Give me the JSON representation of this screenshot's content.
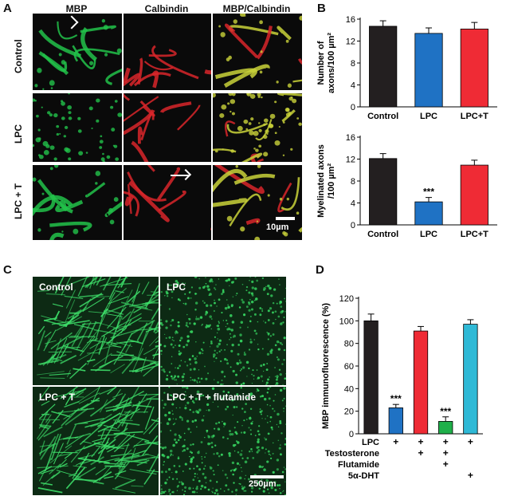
{
  "panels": {
    "a": {
      "letter": "A",
      "columns": [
        "MBP",
        "Calbindin",
        "MBP/Calbindin"
      ],
      "rows": [
        "Control",
        "LPC",
        "LPC + T"
      ],
      "scale_bar": "10µm",
      "colors": {
        "mbp": "#22c24a",
        "calbindin": "#d8262a",
        "merge": "#c9d23a",
        "bg": "#0a0a0a"
      }
    },
    "b": {
      "letter": "B"
    },
    "c": {
      "letter": "C",
      "labels": [
        "Control",
        "LPC",
        "LPC + T",
        "LPC + T + flutamide"
      ],
      "scale_bar": "250µm"
    },
    "d": {
      "letter": "D",
      "row_labels": [
        "LPC",
        "Testosterone",
        "Flutamide",
        "5α-DHT"
      ],
      "plus": "+"
    }
  },
  "chart_data": [
    {
      "id": "b-top",
      "type": "bar",
      "categories": [
        "Control",
        "LPC",
        "LPC+T"
      ],
      "values": [
        14.7,
        13.4,
        14.2
      ],
      "errors": [
        1.0,
        1.0,
        1.2
      ],
      "colors": [
        "#231f20",
        "#1f72c4",
        "#ef2b35"
      ],
      "ylabel": "Number of axons/100 µm²",
      "ylim": [
        0,
        16
      ],
      "yticks": [
        0,
        4,
        8,
        12,
        16
      ],
      "annotations": [
        "",
        "",
        ""
      ]
    },
    {
      "id": "b-bottom",
      "type": "bar",
      "categories": [
        "Control",
        "LPC",
        "LPC+T"
      ],
      "values": [
        12.1,
        4.2,
        10.9
      ],
      "errors": [
        0.9,
        0.8,
        0.9
      ],
      "colors": [
        "#231f20",
        "#1f72c4",
        "#ef2b35"
      ],
      "ylabel": "Myelinated axons /100 µm²",
      "ylim": [
        0,
        16
      ],
      "yticks": [
        0,
        4,
        8,
        12,
        16
      ],
      "annotations": [
        "",
        "***",
        ""
      ]
    },
    {
      "id": "d",
      "type": "bar",
      "categories": [
        "Control",
        "LPC",
        "LPC + Testosterone",
        "LPC + Testosterone + Flutamide",
        "LPC + 5α-DHT"
      ],
      "values": [
        100,
        23,
        91,
        11,
        97
      ],
      "errors": [
        6,
        3,
        4,
        4,
        4
      ],
      "colors": [
        "#231f20",
        "#1f72c4",
        "#ef2b35",
        "#1fb04a",
        "#2fb9d6"
      ],
      "ylabel": "MBP immunofluorescence (%)",
      "ylim": [
        0,
        120
      ],
      "yticks": [
        0,
        20,
        40,
        60,
        80,
        100,
        120
      ],
      "annotations": [
        "",
        "***",
        "",
        "***",
        ""
      ],
      "treatments": {
        "LPC": [
          false,
          true,
          true,
          true,
          true
        ],
        "Testosterone": [
          false,
          false,
          true,
          true,
          false
        ],
        "Flutamide": [
          false,
          false,
          false,
          true,
          false
        ],
        "5α-DHT": [
          false,
          false,
          false,
          false,
          true
        ]
      }
    }
  ]
}
